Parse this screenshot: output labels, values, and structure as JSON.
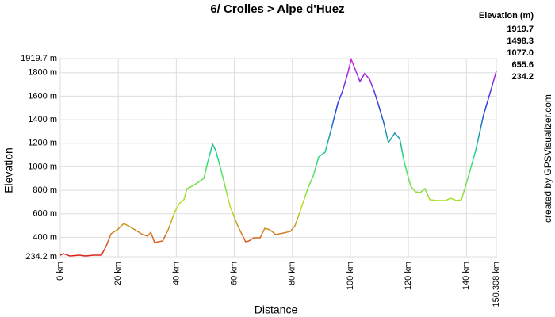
{
  "chart_data": {
    "type": "line",
    "title": "6/ Crolles > Alpe d'Huez",
    "x_label": "Distance",
    "y_label": "Elevation",
    "credit": "created by GPSVisualizer.com",
    "grid": true,
    "color_scale": {
      "title": "Elevation (m)",
      "stops": [
        {
          "value": 1919.7,
          "color": "#e020e0"
        },
        {
          "value": 1498.3,
          "color": "#2040e0"
        },
        {
          "value": 1077,
          "label": "1077.0",
          "color": "#20e080"
        },
        {
          "value": 655.6,
          "color": "#c0e020"
        },
        {
          "value": 234.2,
          "color": "#e02020"
        }
      ]
    },
    "xlim": [
      0,
      150.308
    ],
    "ylim": [
      234.2,
      1919.7
    ],
    "xticks": [
      {
        "value": 0,
        "label": "0 km"
      },
      {
        "value": 20,
        "label": "20 km"
      },
      {
        "value": 40,
        "label": "40 km"
      },
      {
        "value": 60,
        "label": "60 km"
      },
      {
        "value": 80,
        "label": "80 km"
      },
      {
        "value": 100,
        "label": "100 km"
      },
      {
        "value": 120,
        "label": "120 km"
      },
      {
        "value": 140,
        "label": "140 km"
      },
      {
        "value": 150.308,
        "label": "150.308 km"
      }
    ],
    "yticks": [
      {
        "value": 234.2,
        "label": "234.2 m"
      },
      {
        "value": 400,
        "label": "400 m"
      },
      {
        "value": 600,
        "label": "600 m"
      },
      {
        "value": 800,
        "label": "800 m"
      },
      {
        "value": 1000,
        "label": "1000 m"
      },
      {
        "value": 1200,
        "label": "1200 m"
      },
      {
        "value": 1400,
        "label": "1400 m"
      },
      {
        "value": 1600,
        "label": "1600 m"
      },
      {
        "value": 1800,
        "label": "1800 m"
      },
      {
        "value": 1919.7,
        "label": "1919.7 m"
      }
    ],
    "x": [
      0,
      1.1,
      3.3,
      6.6,
      8.7,
      11.5,
      14.2,
      15.9,
      17.5,
      19.7,
      21.9,
      23.5,
      25.7,
      28.4,
      30.1,
      31.2,
      32.5,
      35.3,
      37.2,
      39.4,
      41.0,
      42.6,
      43.7,
      45.4,
      47.6,
      49.5,
      50.8,
      52.5,
      53.6,
      55.8,
      58.5,
      61.2,
      63.9,
      65.0,
      66.7,
      68.9,
      70.5,
      72.2,
      74.3,
      77.1,
      79.3,
      80.9,
      83.1,
      85.3,
      87.2,
      89.1,
      91.3,
      93.5,
      95.7,
      97.3,
      98.9,
      100.3,
      101.7,
      103.3,
      104.9,
      106.6,
      108.2,
      109.9,
      111.5,
      113.1,
      115.3,
      117.0,
      118.6,
      120.8,
      122.4,
      124.1,
      125.7,
      127.4,
      130.1,
      132.8,
      134.5,
      136.6,
      138.3,
      140.5,
      143.2,
      145.9,
      148.1,
      150.3
    ],
    "values": [
      247,
      261,
      241,
      248,
      241,
      248,
      248,
      329,
      430,
      464,
      517,
      497,
      464,
      423,
      410,
      443,
      356,
      369,
      464,
      612,
      686,
      720,
      814,
      834,
      868,
      902,
      1037,
      1192,
      1138,
      936,
      666,
      497,
      362,
      369,
      396,
      396,
      477,
      464,
      423,
      437,
      450,
      497,
      652,
      814,
      922,
      1084,
      1124,
      1327,
      1542,
      1643,
      1778,
      1913,
      1826,
      1725,
      1792,
      1745,
      1643,
      1509,
      1374,
      1205,
      1286,
      1239,
      1037,
      834,
      787,
      780,
      814,
      720,
      713,
      713,
      733,
      713,
      720,
      902,
      1138,
      1441,
      1623,
      1812
    ]
  }
}
